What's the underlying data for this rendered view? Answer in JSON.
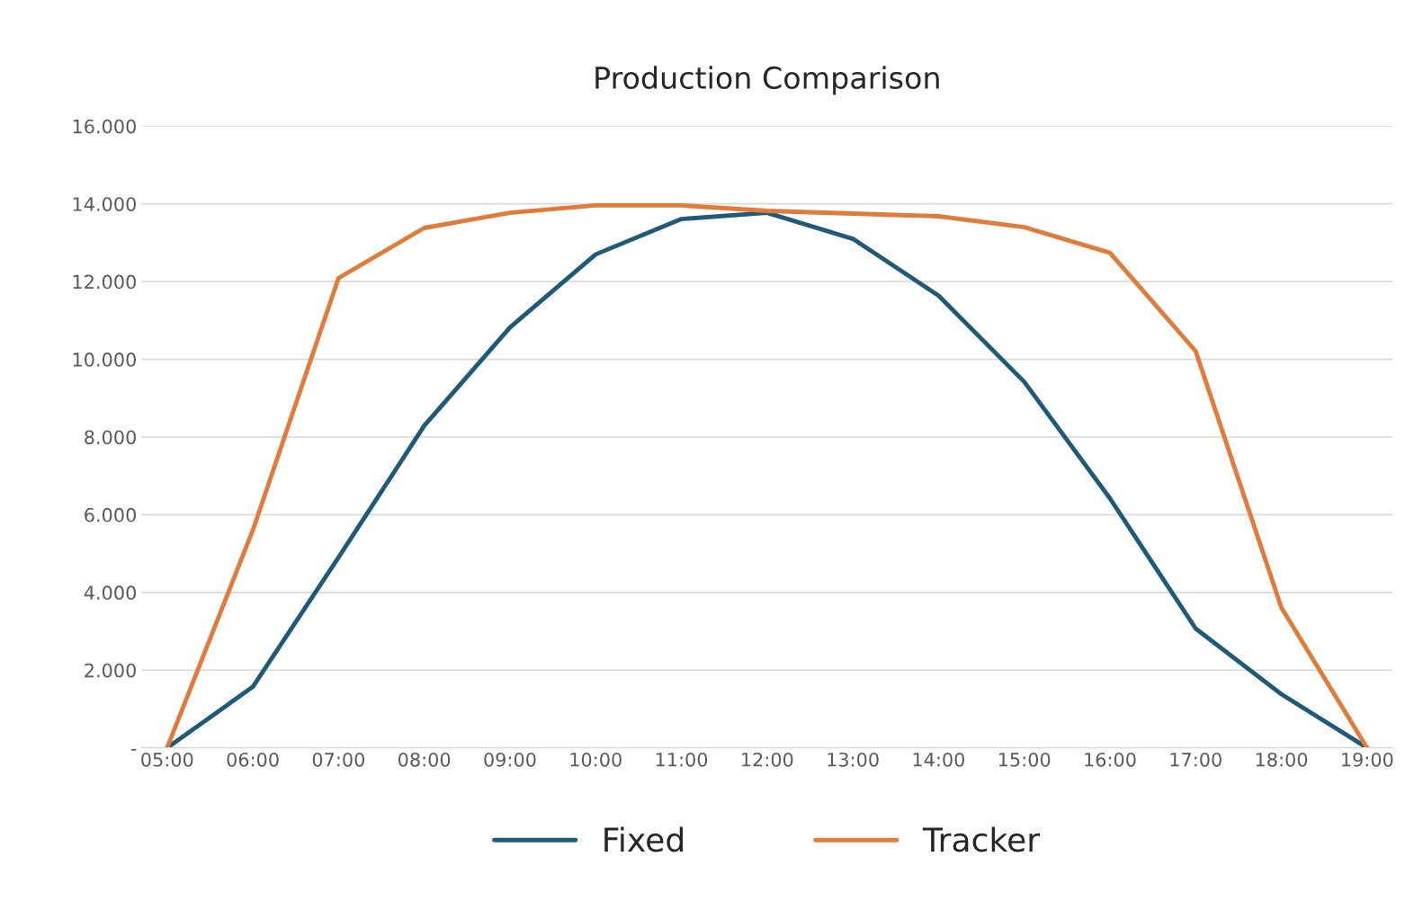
{
  "chart_data": {
    "type": "line",
    "title": "Production Comparison",
    "categories": [
      "05:00",
      "06:00",
      "07:00",
      "08:00",
      "09:00",
      "10:00",
      "11:00",
      "12:00",
      "13:00",
      "14:00",
      "15:00",
      "16:00",
      "17:00",
      "18:00",
      "19:00"
    ],
    "series": [
      {
        "name": "Fixed",
        "color": "#1f5a78",
        "values": [
          0,
          1570,
          4900,
          8290,
          10820,
          12700,
          13610,
          13770,
          13100,
          11640,
          9420,
          6420,
          3070,
          1380,
          0
        ]
      },
      {
        "name": "Tracker",
        "color": "#e07b39",
        "values": [
          0,
          5600,
          12090,
          13380,
          13770,
          13960,
          13960,
          13820,
          13750,
          13680,
          13400,
          12740,
          10210,
          3610,
          0
        ]
      }
    ],
    "ylim": [
      0,
      16000
    ],
    "yticks": [
      {
        "value": 0,
        "label": "-"
      },
      {
        "value": 2000,
        "label": "2.000"
      },
      {
        "value": 4000,
        "label": "4.000"
      },
      {
        "value": 6000,
        "label": "6.000"
      },
      {
        "value": 8000,
        "label": "8.000"
      },
      {
        "value": 10000,
        "label": "10.000"
      },
      {
        "value": 12000,
        "label": "12.000"
      },
      {
        "value": 14000,
        "label": "14.000"
      },
      {
        "value": 16000,
        "label": "16.000"
      }
    ],
    "grid": "y",
    "legend": "bottom",
    "marker": "none",
    "line_style": "solid"
  }
}
